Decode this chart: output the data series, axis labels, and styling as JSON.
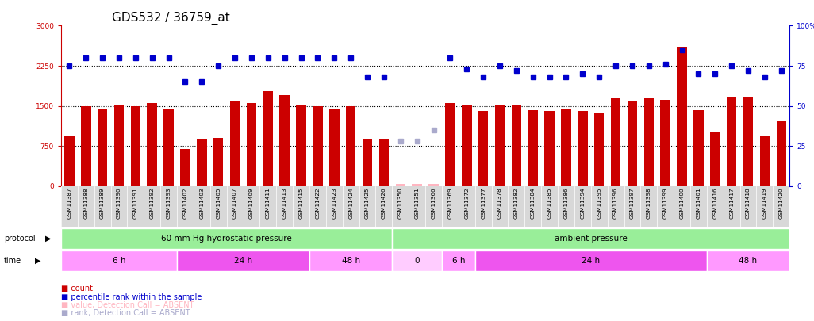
{
  "title": "GDS532 / 36759_at",
  "samples": [
    "GSM11387",
    "GSM11388",
    "GSM11389",
    "GSM11390",
    "GSM11391",
    "GSM11392",
    "GSM11393",
    "GSM11402",
    "GSM11403",
    "GSM11405",
    "GSM11407",
    "GSM11409",
    "GSM11411",
    "GSM11413",
    "GSM11415",
    "GSM11422",
    "GSM11423",
    "GSM11424",
    "GSM11425",
    "GSM11426",
    "GSM11350",
    "GSM11351",
    "GSM11366",
    "GSM11369",
    "GSM11372",
    "GSM11377",
    "GSM11378",
    "GSM11382",
    "GSM11384",
    "GSM11385",
    "GSM11386",
    "GSM11394",
    "GSM11395",
    "GSM11396",
    "GSM11397",
    "GSM11398",
    "GSM11399",
    "GSM11400",
    "GSM11401",
    "GSM11416",
    "GSM11417",
    "GSM11418",
    "GSM11419",
    "GSM11420"
  ],
  "counts": [
    950,
    1500,
    1430,
    1530,
    1500,
    1550,
    1450,
    700,
    870,
    900,
    1600,
    1550,
    1770,
    1700,
    1530,
    1490,
    1440,
    1500,
    870,
    870,
    50,
    50,
    50,
    1560,
    1520,
    1400,
    1520,
    1510,
    1420,
    1410,
    1430,
    1410,
    1380,
    1640,
    1580,
    1650,
    1620,
    2600,
    1420,
    1000,
    1680,
    1680,
    950,
    1220
  ],
  "ranks": [
    75,
    80,
    80,
    80,
    80,
    80,
    80,
    65,
    65,
    75,
    80,
    80,
    80,
    80,
    80,
    80,
    80,
    80,
    68,
    68,
    28,
    28,
    35,
    80,
    73,
    68,
    75,
    72,
    68,
    68,
    68,
    70,
    68,
    75,
    75,
    75,
    76,
    85,
    70,
    70,
    75,
    72,
    68,
    72
  ],
  "absent_indices": [
    20,
    21,
    22
  ],
  "ylim_left": [
    0,
    3000
  ],
  "ylim_right": [
    0,
    100
  ],
  "yticks_left": [
    0,
    750,
    1500,
    2250,
    3000
  ],
  "yticks_right": [
    0,
    25,
    50,
    75,
    100
  ],
  "bar_color": "#CC0000",
  "dot_color": "#0000CC",
  "absent_bar_color": "#FFB6C1",
  "absent_dot_color": "#AAAACC",
  "proto_groups": [
    {
      "label": "60 mm Hg hydrostatic pressure",
      "start": 0,
      "end": 19,
      "color": "#99EE99"
    },
    {
      "label": "ambient pressure",
      "start": 20,
      "end": 43,
      "color": "#99EE99"
    }
  ],
  "time_groups": [
    {
      "label": "6 h",
      "start": 0,
      "end": 6,
      "color": "#FF99FF"
    },
    {
      "label": "24 h",
      "start": 7,
      "end": 14,
      "color": "#EE55EE"
    },
    {
      "label": "48 h",
      "start": 15,
      "end": 19,
      "color": "#FF99FF"
    },
    {
      "label": "0",
      "start": 20,
      "end": 22,
      "color": "#FFCCFF"
    },
    {
      "label": "6 h",
      "start": 23,
      "end": 24,
      "color": "#FF99FF"
    },
    {
      "label": "24 h",
      "start": 25,
      "end": 38,
      "color": "#EE55EE"
    },
    {
      "label": "48 h",
      "start": 39,
      "end": 43,
      "color": "#FF99FF"
    }
  ],
  "tick_fontsize": 6.5,
  "title_fontsize": 11
}
